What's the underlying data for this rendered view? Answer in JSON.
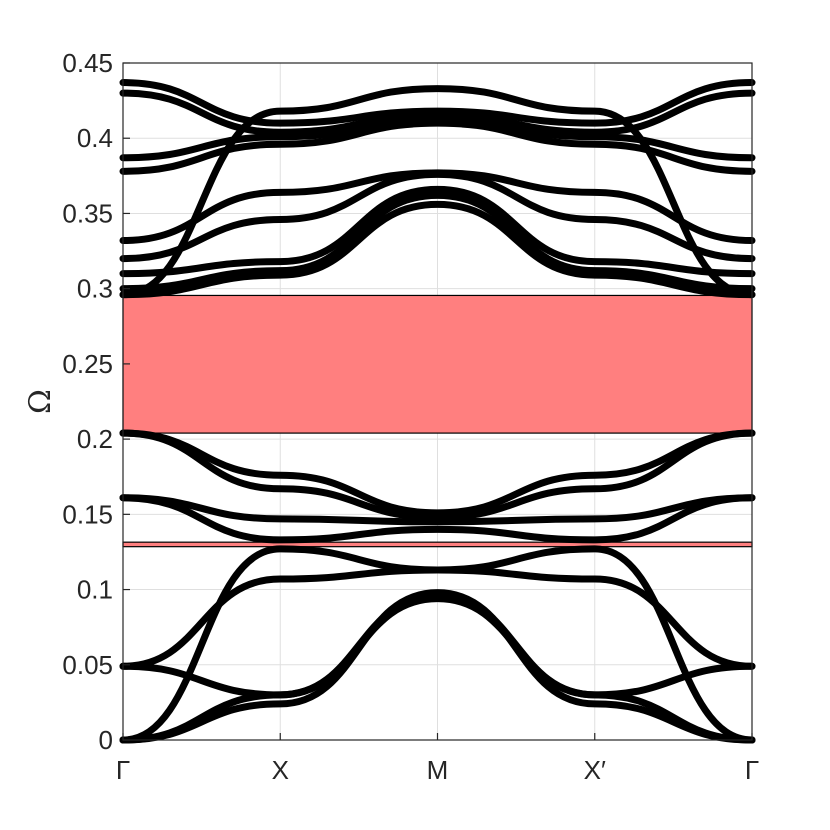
{
  "chart_data": {
    "type": "line",
    "title": "",
    "xlabel": "",
    "ylabel": "Ω",
    "ylim": [
      0,
      0.45
    ],
    "grid": true,
    "x_ticks": [
      "Γ",
      "X",
      "M",
      "X′",
      "Γ"
    ],
    "y_ticks": [
      "0",
      "0.05",
      "0.1",
      "0.15",
      "0.2",
      "0.25",
      "0.3",
      "0.35",
      "0.4",
      "0.45"
    ],
    "y_tick_values": [
      0,
      0.05,
      0.1,
      0.15,
      0.2,
      0.25,
      0.3,
      0.35,
      0.4,
      0.45
    ],
    "band_color": "#000000",
    "band_gaps": [
      {
        "lower": 0.204,
        "upper": 0.2955,
        "color": "#ff7f7f"
      },
      {
        "lower": 0.1285,
        "upper": 0.1315,
        "color": "#ff7f7f"
      }
    ],
    "x": [
      0,
      1,
      2,
      3,
      4
    ],
    "series": [
      {
        "values": [
          0,
          0.024,
          0.098,
          0.024,
          0
        ]
      },
      {
        "values": [
          0,
          0.03,
          0.096,
          0.03,
          0
        ]
      },
      {
        "values": [
          0.049,
          0.03,
          0.094,
          0.03,
          0.049
        ]
      },
      {
        "values": [
          0.049,
          0.107,
          0.113,
          0.107,
          0.049
        ]
      },
      {
        "values": [
          0,
          0.127,
          0.113,
          0.127,
          0
        ]
      },
      {
        "values": [
          0.161,
          0.133,
          0.14,
          0.133,
          0.161
        ]
      },
      {
        "values": [
          0.161,
          0.147,
          0.145,
          0.147,
          0.161
        ]
      },
      {
        "values": [
          0.204,
          0.167,
          0.148,
          0.167,
          0.204
        ]
      },
      {
        "values": [
          0.204,
          0.176,
          0.151,
          0.176,
          0.204
        ]
      },
      {
        "values": [
          0.296,
          0.309,
          0.356,
          0.309,
          0.296
        ]
      },
      {
        "values": [
          0.3,
          0.312,
          0.362,
          0.312,
          0.3
        ]
      },
      {
        "values": [
          0.31,
          0.318,
          0.366,
          0.318,
          0.31
        ]
      },
      {
        "values": [
          0.32,
          0.346,
          0.376,
          0.346,
          0.32
        ]
      },
      {
        "values": [
          0.332,
          0.364,
          0.377,
          0.364,
          0.332
        ]
      },
      {
        "values": [
          0.378,
          0.396,
          0.41,
          0.396,
          0.378
        ]
      },
      {
        "values": [
          0.387,
          0.401,
          0.411,
          0.401,
          0.387
        ]
      },
      {
        "values": [
          0.43,
          0.404,
          0.415,
          0.404,
          0.43
        ]
      },
      {
        "values": [
          0.437,
          0.41,
          0.418,
          0.41,
          0.437
        ]
      },
      {
        "values": [
          0.296,
          0.418,
          0.433,
          0.418,
          0.296
        ]
      }
    ]
  }
}
